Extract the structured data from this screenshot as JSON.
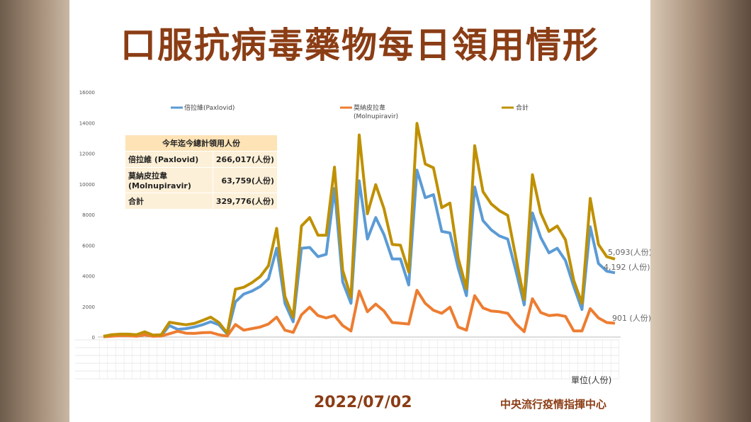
{
  "title": "口服抗病毒藥物每日領用情形",
  "date": "2022/07/02",
  "org": "中央流行疫情指揮中心",
  "unit": "單位(人份)",
  "summary": {
    "header": "今年迄今總計領用人份",
    "rows": [
      {
        "label": "倍拉維 (Paxlovid)",
        "value": "266,017(人份)"
      },
      {
        "label": "莫納皮拉韋 (Molnupiravir)",
        "value": "63,759(人份)"
      },
      {
        "label": "合計",
        "value": "329,776(人份)"
      }
    ]
  },
  "end_labels": {
    "total": "5,093(人份)",
    "paxlovid": "4,192 (人份)",
    "molnupiravir": "901 (人份)"
  },
  "colors": {
    "paxlovid": "#5b9bd5",
    "molnupiravir": "#ed7d31",
    "total": "#bf9000"
  },
  "chart_data": {
    "type": "line",
    "ylim": [
      0,
      16000
    ],
    "yticks": [
      0,
      2000,
      4000,
      6000,
      8000,
      10000,
      12000,
      14000,
      16000
    ],
    "legend_position": "top",
    "grid": false,
    "series": [
      {
        "name": "倍拉維(Paxlovid)",
        "values": [
          24,
          100,
          100,
          100,
          100,
          200,
          80,
          80,
          750,
          500,
          550,
          650,
          800,
          1000,
          800,
          200,
          2300,
          2800,
          3000,
          3300,
          3800,
          5800,
          2200,
          1000,
          5800,
          5850,
          5250,
          5400,
          9700,
          3600,
          2200,
          10200,
          6400,
          7800,
          6700,
          5100,
          5100,
          3400,
          10900,
          9100,
          9300,
          6900,
          6800,
          4500,
          2700,
          9800,
          7600,
          7000,
          6600,
          6400,
          4300,
          2100,
          8100,
          6500,
          5500,
          5800,
          5000,
          3300,
          1800,
          7200,
          4800,
          4300,
          4192
        ]
      },
      {
        "name": "莫納皮拉韋 (Molnupiravir)",
        "values": [
          20,
          52,
          91,
          90,
          51,
          141,
          50,
          66,
          218,
          378,
          250,
          235,
          281,
          300,
          150,
          60,
          820,
          450,
          550,
          650,
          850,
          1300,
          450,
          300,
          1450,
          1950,
          1400,
          1250,
          1400,
          750,
          400,
          3000,
          1650,
          2150,
          1700,
          950,
          900,
          850,
          3050,
          2200,
          1750,
          1550,
          1950,
          650,
          450,
          2700,
          1900,
          1700,
          1650,
          1550,
          850,
          350,
          2500,
          1600,
          1400,
          1450,
          1350,
          400,
          400,
          1850,
          1250,
          950,
          901
        ]
      },
      {
        "name": "合計",
        "values": [
          44,
          152,
          191,
          190,
          151,
          341,
          130,
          146,
          968,
          878,
          800,
          885,
          1081,
          1300,
          950,
          260,
          3120,
          3250,
          3550,
          3950,
          4650,
          7100,
          2650,
          1300,
          7250,
          7800,
          6650,
          6650,
          11100,
          4350,
          2600,
          13200,
          8050,
          9950,
          8400,
          6050,
          6000,
          4250,
          13950,
          11300,
          11050,
          8450,
          8750,
          5150,
          3150,
          12500,
          9500,
          8700,
          8250,
          7950,
          5150,
          2450,
          10600,
          8100,
          6900,
          7250,
          6350,
          3700,
          2200,
          9050,
          6050,
          5250,
          5093
        ]
      }
    ]
  }
}
